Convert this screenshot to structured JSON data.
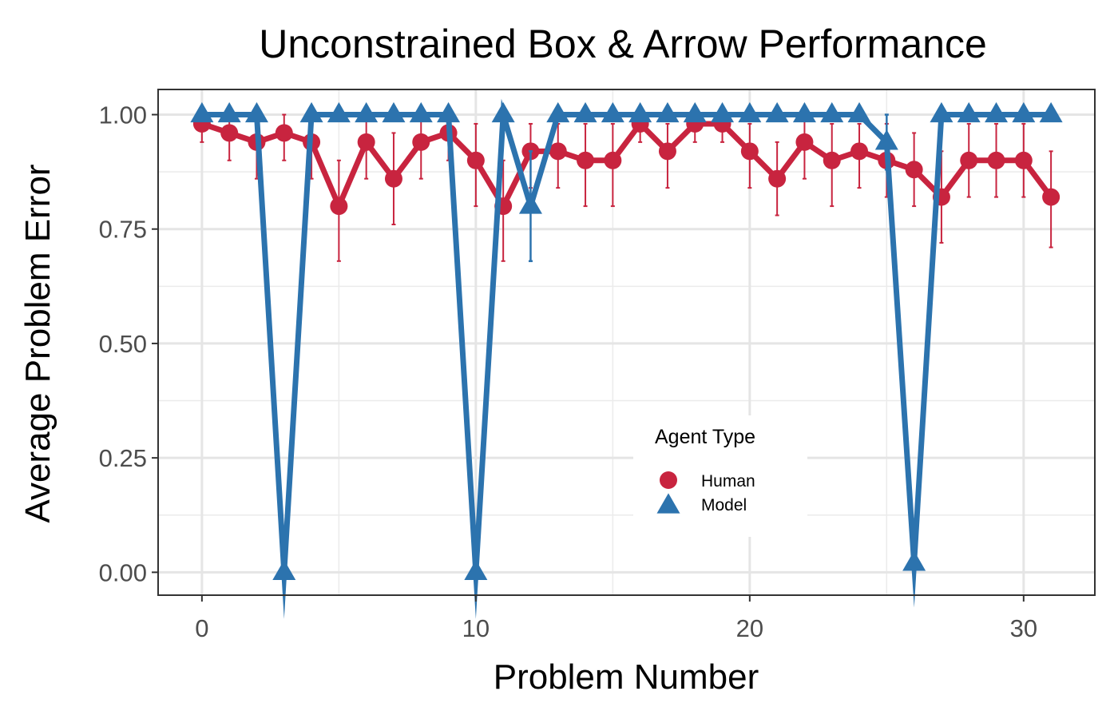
{
  "chart_data": {
    "type": "line",
    "title": "Unconstrained Box & Arrow Performance",
    "xlabel": "Problem Number",
    "ylabel": "Average Problem Error",
    "xlim": [
      -1.6,
      32.6
    ],
    "ylim": [
      -0.05,
      1.055
    ],
    "x_ticks": [
      0,
      10,
      20,
      30
    ],
    "x_tick_labels": [
      "0",
      "10",
      "20",
      "30"
    ],
    "x_minor_ticks": [
      5,
      15,
      25
    ],
    "y_ticks": [
      0,
      0.25,
      0.5,
      0.75,
      1.0
    ],
    "y_tick_labels": [
      "0.00",
      "0.25",
      "0.50",
      "0.75",
      "1.00"
    ],
    "y_minor_ticks": [
      0.125,
      0.375,
      0.625,
      0.875
    ],
    "grid": true,
    "legend": {
      "title": "Agent Type",
      "position": "inside-lower-center"
    },
    "series": [
      {
        "name": "Human",
        "color": "#C8243F",
        "marker": "circle",
        "x": [
          0,
          1,
          2,
          3,
          4,
          5,
          6,
          7,
          8,
          9,
          10,
          11,
          12,
          13,
          14,
          15,
          16,
          17,
          18,
          19,
          20,
          21,
          22,
          23,
          24,
          25,
          26,
          27,
          28,
          29,
          30,
          31
        ],
        "y": [
          0.98,
          0.96,
          0.94,
          0.96,
          0.94,
          0.8,
          0.94,
          0.86,
          0.94,
          0.96,
          0.9,
          0.8,
          0.92,
          0.92,
          0.9,
          0.9,
          0.98,
          0.92,
          0.98,
          0.98,
          0.92,
          0.86,
          0.94,
          0.9,
          0.92,
          0.9,
          0.88,
          0.82,
          0.9,
          0.9,
          0.9,
          0.82
        ],
        "err_low": [
          0.94,
          0.9,
          0.86,
          0.9,
          0.86,
          0.68,
          0.86,
          0.76,
          0.86,
          0.9,
          0.8,
          0.68,
          0.84,
          0.84,
          0.8,
          0.8,
          0.94,
          0.84,
          0.94,
          0.94,
          0.84,
          0.78,
          0.86,
          0.8,
          0.84,
          0.82,
          0.8,
          0.72,
          0.82,
          0.82,
          0.82,
          0.71
        ],
        "err_high": [
          1.0,
          1.0,
          1.0,
          1.0,
          1.0,
          0.9,
          1.0,
          0.96,
          1.0,
          1.0,
          0.98,
          0.9,
          0.98,
          0.98,
          0.98,
          0.98,
          1.0,
          0.98,
          1.0,
          1.0,
          0.98,
          0.94,
          1.0,
          0.98,
          0.98,
          0.98,
          0.96,
          0.92,
          0.98,
          0.98,
          0.98,
          0.92
        ]
      },
      {
        "name": "Model",
        "color": "#2C73AE",
        "marker": "triangle",
        "x": [
          0,
          1,
          2,
          3,
          4,
          5,
          6,
          7,
          8,
          9,
          10,
          11,
          12,
          13,
          14,
          15,
          16,
          17,
          18,
          19,
          20,
          21,
          22,
          23,
          24,
          25,
          26,
          27,
          28,
          29,
          30,
          31
        ],
        "y": [
          1.0,
          1.0,
          1.0,
          0.0,
          1.0,
          1.0,
          1.0,
          1.0,
          1.0,
          1.0,
          0.0,
          1.0,
          0.8,
          1.0,
          1.0,
          1.0,
          1.0,
          1.0,
          1.0,
          1.0,
          1.0,
          1.0,
          1.0,
          1.0,
          1.0,
          0.94,
          0.02,
          1.0,
          1.0,
          1.0,
          1.0,
          1.0
        ],
        "err_low": [
          null,
          null,
          null,
          null,
          null,
          null,
          null,
          null,
          null,
          null,
          null,
          null,
          0.68,
          null,
          null,
          null,
          null,
          null,
          null,
          null,
          null,
          null,
          null,
          null,
          null,
          0.88,
          null,
          null,
          null,
          null,
          null,
          null
        ],
        "err_high": [
          null,
          null,
          null,
          null,
          null,
          null,
          null,
          null,
          null,
          null,
          null,
          null,
          0.92,
          null,
          null,
          null,
          null,
          null,
          null,
          null,
          null,
          null,
          null,
          null,
          null,
          1.0,
          null,
          null,
          null,
          null,
          null,
          null
        ]
      }
    ]
  }
}
